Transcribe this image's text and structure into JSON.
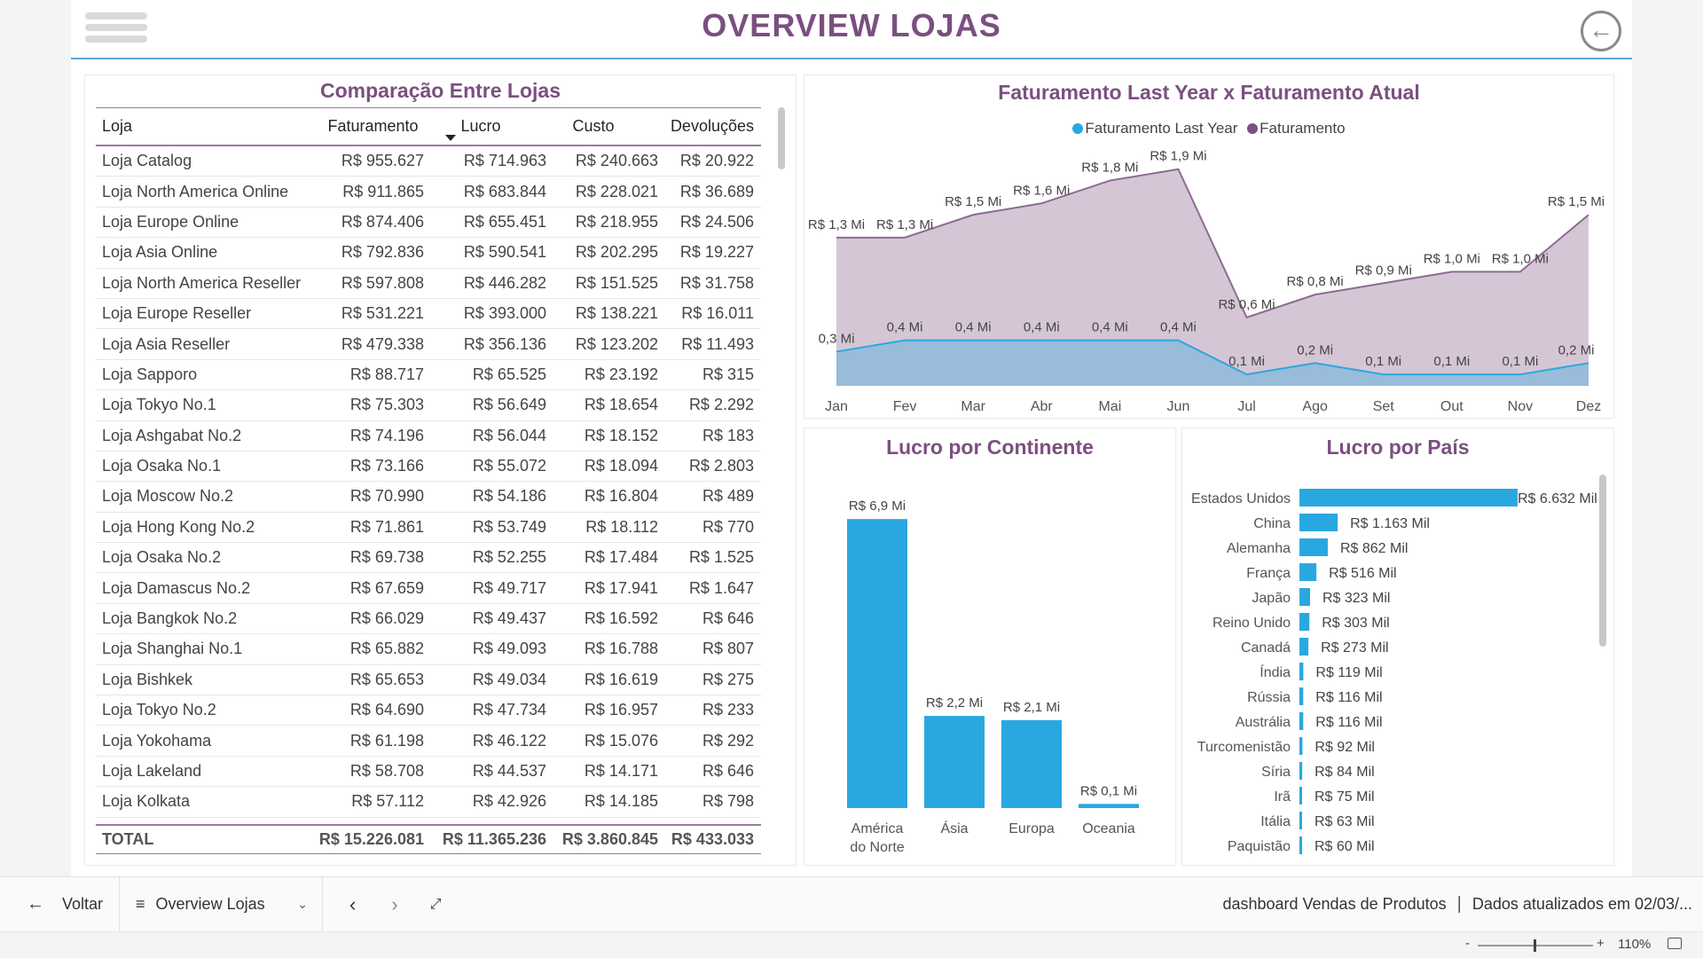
{
  "header": {
    "title": "OVERVIEW LOJAS"
  },
  "table": {
    "title": "Comparação Entre Lojas",
    "columns": [
      "Loja",
      "Faturamento",
      "Lucro",
      "Custo",
      "Devoluções"
    ],
    "rows": [
      [
        "Loja Catalog",
        "R$ 955.627",
        "R$ 714.963",
        "R$ 240.663",
        "R$ 20.922"
      ],
      [
        "Loja North America Online",
        "R$ 911.865",
        "R$ 683.844",
        "R$ 228.021",
        "R$ 36.689"
      ],
      [
        "Loja Europe Online",
        "R$ 874.406",
        "R$ 655.451",
        "R$ 218.955",
        "R$ 24.506"
      ],
      [
        "Loja Asia Online",
        "R$ 792.836",
        "R$ 590.541",
        "R$ 202.295",
        "R$ 19.227"
      ],
      [
        "Loja North America Reseller",
        "R$ 597.808",
        "R$ 446.282",
        "R$ 151.525",
        "R$ 31.758"
      ],
      [
        "Loja Europe Reseller",
        "R$ 531.221",
        "R$ 393.000",
        "R$ 138.221",
        "R$ 16.011"
      ],
      [
        "Loja Asia Reseller",
        "R$ 479.338",
        "R$ 356.136",
        "R$ 123.202",
        "R$ 11.493"
      ],
      [
        "Loja Sapporo",
        "R$ 88.717",
        "R$ 65.525",
        "R$ 23.192",
        "R$ 315"
      ],
      [
        "Loja Tokyo No.1",
        "R$ 75.303",
        "R$ 56.649",
        "R$ 18.654",
        "R$ 2.292"
      ],
      [
        "Loja Ashgabat No.2",
        "R$ 74.196",
        "R$ 56.044",
        "R$ 18.152",
        "R$ 183"
      ],
      [
        "Loja Osaka No.1",
        "R$ 73.166",
        "R$ 55.072",
        "R$ 18.094",
        "R$ 2.803"
      ],
      [
        "Loja Moscow No.2",
        "R$ 70.990",
        "R$ 54.186",
        "R$ 16.804",
        "R$ 489"
      ],
      [
        "Loja Hong Kong No.2",
        "R$ 71.861",
        "R$ 53.749",
        "R$ 18.112",
        "R$ 770"
      ],
      [
        "Loja Osaka No.2",
        "R$ 69.738",
        "R$ 52.255",
        "R$ 17.484",
        "R$ 1.525"
      ],
      [
        "Loja Damascus No.2",
        "R$ 67.659",
        "R$ 49.717",
        "R$ 17.941",
        "R$ 1.647"
      ],
      [
        "Loja Bangkok No.2",
        "R$ 66.029",
        "R$ 49.437",
        "R$ 16.592",
        "R$ 646"
      ],
      [
        "Loja Shanghai No.1",
        "R$ 65.882",
        "R$ 49.093",
        "R$ 16.788",
        "R$ 807"
      ],
      [
        "Loja Bishkek",
        "R$ 65.653",
        "R$ 49.034",
        "R$ 16.619",
        "R$ 275"
      ],
      [
        "Loja Tokyo No.2",
        "R$ 64.690",
        "R$ 47.734",
        "R$ 16.957",
        "R$ 233"
      ],
      [
        "Loja Yokohama",
        "R$ 61.198",
        "R$ 46.122",
        "R$ 15.076",
        "R$ 292"
      ],
      [
        "Loja Lakeland",
        "R$ 58.708",
        "R$ 44.537",
        "R$ 14.171",
        "R$ 646"
      ],
      [
        "Loja Kolkata",
        "R$ 57.112",
        "R$ 42.926",
        "R$ 14.185",
        "R$ 798"
      ]
    ],
    "total": [
      "TOTAL",
      "R$ 15.226.081",
      "R$ 11.365.236",
      "R$ 3.860.845",
      "R$ 433.033"
    ]
  },
  "chart_data": [
    {
      "type": "area",
      "title": "Faturamento Last Year x Faturamento Atual",
      "categories": [
        "Jan",
        "Fev",
        "Mar",
        "Abr",
        "Mai",
        "Jun",
        "Jul",
        "Ago",
        "Set",
        "Out",
        "Nov",
        "Dez"
      ],
      "series": [
        {
          "name": "Faturamento Last Year",
          "color": "#29a8e0",
          "values": [
            0.3,
            0.4,
            0.4,
            0.4,
            0.4,
            0.4,
            0.1,
            0.2,
            0.1,
            0.1,
            0.1,
            0.2
          ],
          "labels": [
            "0,3 Mi",
            "0,4 Mi",
            "0,4 Mi",
            "0,4 Mi",
            "0,4 Mi",
            "0,4 Mi",
            "0,1 Mi",
            "0,2 Mi",
            "0,1 Mi",
            "0,1 Mi",
            "0,1 Mi",
            "0,2 Mi"
          ]
        },
        {
          "name": "Faturamento",
          "color": "#7b4f80",
          "values": [
            1.3,
            1.3,
            1.5,
            1.6,
            1.8,
            1.9,
            0.6,
            0.8,
            0.9,
            1.0,
            1.0,
            1.5
          ],
          "labels": [
            "R$ 1,3 Mi",
            "R$ 1,3 Mi",
            "R$ 1,5 Mi",
            "R$ 1,6 Mi",
            "R$ 1,8 Mi",
            "R$ 1,9 Mi",
            "R$ 0,6 Mi",
            "R$ 0,8 Mi",
            "R$ 0,9 Mi",
            "R$ 1,0 Mi",
            "R$ 1,0 Mi",
            "R$ 1,5 Mi"
          ]
        }
      ],
      "unit": "Mi"
    },
    {
      "type": "bar",
      "title": "Lucro por Continente",
      "categories": [
        "América do Norte",
        "Ásia",
        "Europa",
        "Oceania"
      ],
      "values": [
        6.9,
        2.2,
        2.1,
        0.1
      ],
      "labels": [
        "R$ 6,9 Mi",
        "R$ 2,2 Mi",
        "R$ 2,1 Mi",
        "R$ 0,1 Mi"
      ],
      "color": "#29a8e0"
    },
    {
      "type": "bar",
      "orientation": "horizontal",
      "title": "Lucro por País",
      "categories": [
        "Estados Unidos",
        "China",
        "Alemanha",
        "França",
        "Japão",
        "Reino Unido",
        "Canadá",
        "Índia",
        "Rússia",
        "Austrália",
        "Turcomenistão",
        "Síria",
        "Irã",
        "Itália",
        "Paquistão"
      ],
      "values": [
        6632,
        1163,
        862,
        516,
        323,
        303,
        273,
        119,
        116,
        116,
        92,
        84,
        75,
        63,
        60
      ],
      "labels": [
        "R$ 6.632 Mil",
        "R$ 1.163 Mil",
        "R$ 862 Mil",
        "R$ 516 Mil",
        "R$ 323 Mil",
        "R$ 303 Mil",
        "R$ 273 Mil",
        "R$ 119 Mil",
        "R$ 116 Mil",
        "R$ 116 Mil",
        "R$ 92 Mil",
        "R$ 84 Mil",
        "R$ 75 Mil",
        "R$ 63 Mil",
        "R$ 60 Mil"
      ],
      "color": "#29a8e0"
    }
  ],
  "bottombar": {
    "back_label": "Voltar",
    "page_label": "Overview Lojas",
    "report_name": "dashboard Vendas de Produtos",
    "updated": "Dados atualizados em 02/03/...",
    "zoom": "110%"
  }
}
